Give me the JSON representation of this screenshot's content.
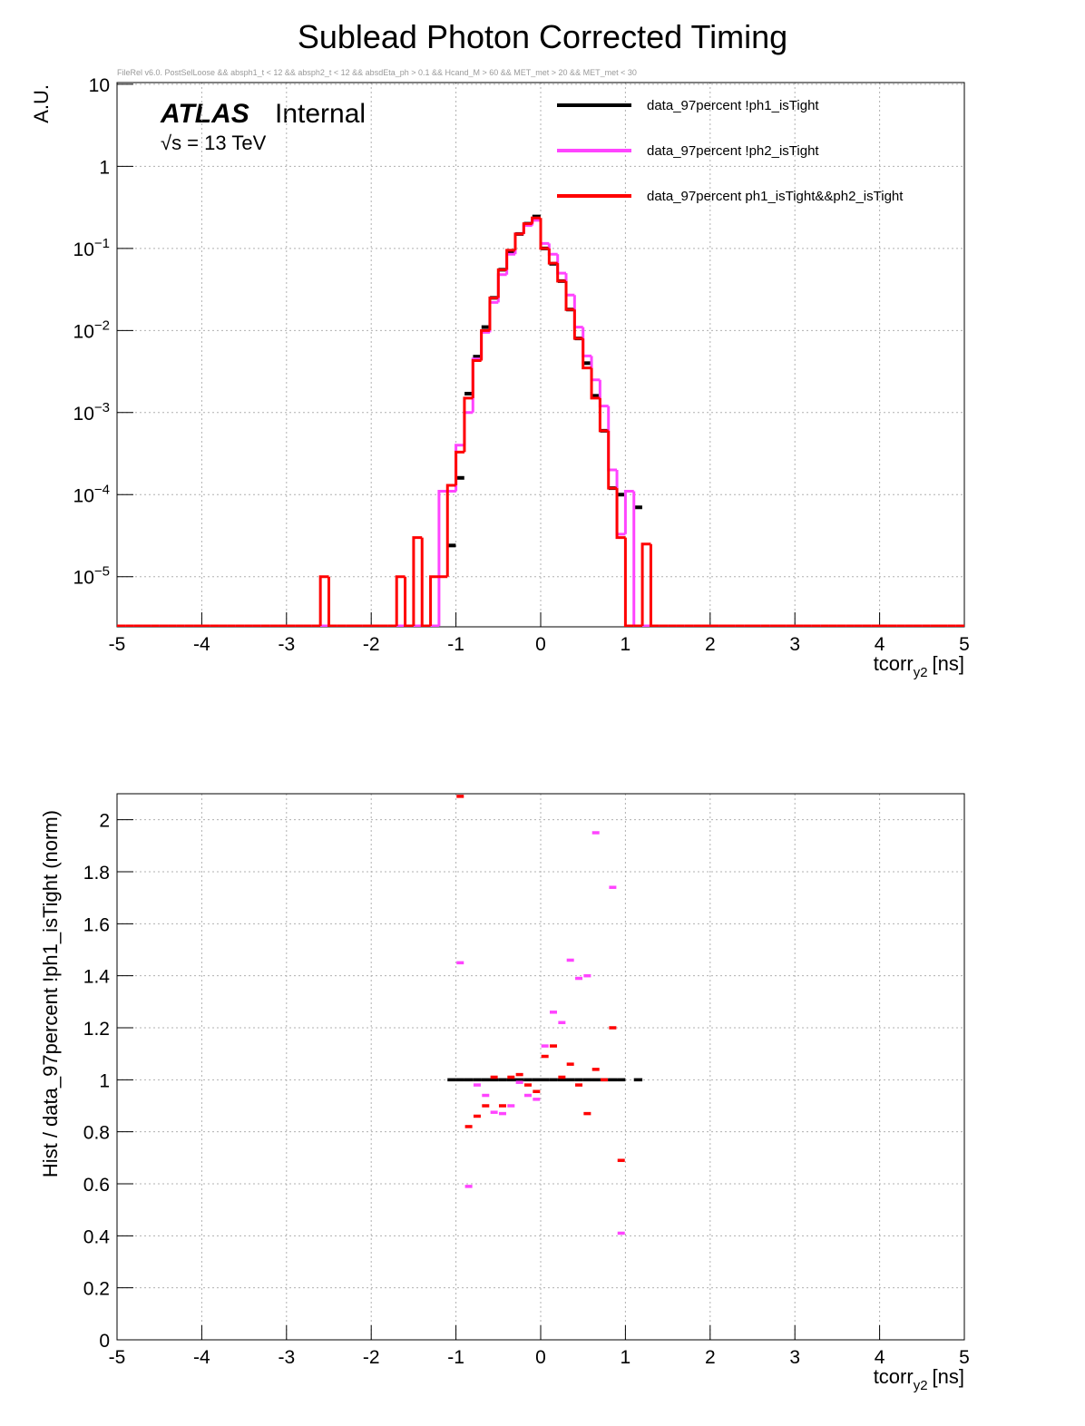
{
  "chart_data": [
    {
      "type": "histogram",
      "title": "Sublead Photon Corrected Timing",
      "subtitle": "FileRel v6.0. PostSelLoose &&  absph1_t < 12 && absph2_t < 12 && absdEta_ph > 0.1 && Hcand_M > 60 && MET_met > 20 && MET_met < 30",
      "annotations": [
        "ATLAS",
        "Internal",
        "√s = 13 TeV"
      ],
      "y_label": "A.U.",
      "x_label": {
        "main": "tcorr",
        "sub": "y2",
        "unit": "[ns]"
      },
      "log_y": true,
      "grid": true,
      "legend": "upper right",
      "xlim": [
        -5,
        5
      ],
      "xticks": [
        -5,
        -4,
        -3,
        -2,
        -1,
        0,
        1,
        2,
        3,
        4,
        5
      ],
      "ylim": [
        2.45e-06,
        10.5
      ],
      "yticks": [
        {
          "value": 1e-05,
          "label": "10",
          "exponent": "−5"
        },
        {
          "value": 0.0001,
          "label": "10",
          "exponent": "−4"
        },
        {
          "value": 0.001,
          "label": "10",
          "exponent": "−3"
        },
        {
          "value": 0.01,
          "label": "10",
          "exponent": "−2"
        },
        {
          "value": 0.1,
          "label": "10",
          "exponent": "−1"
        },
        1,
        10
      ],
      "bins": [
        -5,
        -4.9,
        -4.8,
        -4.7,
        -4.6,
        -4.5,
        -4.4,
        -4.3,
        -4.2,
        -4.1,
        -4,
        -3.9,
        -3.8,
        -3.7,
        -3.6,
        -3.5,
        -3.4,
        -3.3,
        -3.2,
        -3.1,
        -3,
        -2.9,
        -2.8,
        -2.7,
        -2.6,
        -2.5,
        -2.4,
        -2.3,
        -2.2,
        -2.1,
        -2,
        -1.9,
        -1.8,
        -1.7,
        -1.6,
        -1.5,
        -1.4,
        -1.3,
        -1.2,
        -1.1,
        -1,
        -0.9,
        -0.8,
        -0.7,
        -0.6,
        -0.5,
        -0.4,
        -0.3,
        -0.2,
        -0.1,
        0,
        0.1,
        0.2,
        0.3,
        0.4,
        0.5,
        0.6,
        0.7,
        0.8,
        0.9,
        1,
        1.1,
        1.2,
        1.3,
        1.4,
        1.5,
        1.6,
        1.7,
        1.8,
        1.9,
        2,
        2.1,
        2.2,
        2.3,
        2.4,
        2.5,
        2.6,
        2.7,
        2.8,
        2.9,
        3,
        3.1,
        3.2,
        3.3,
        3.4,
        3.5,
        3.6,
        3.7,
        3.8,
        3.9,
        4,
        4.1,
        4.2,
        4.3,
        4.4,
        4.5,
        4.6,
        4.7,
        4.8,
        4.9,
        5
      ],
      "series": [
        {
          "name": "data_97percent  !ph1_isTight",
          "color": "#000000",
          "style": "points",
          "values": [
            0,
            0,
            0,
            0,
            0,
            0,
            0,
            0,
            0,
            0,
            0,
            0,
            0,
            0,
            0,
            0,
            0,
            0,
            0,
            0,
            0,
            0,
            0,
            0,
            0,
            0,
            0,
            0,
            0,
            0,
            0,
            0,
            0,
            0,
            0,
            0,
            0,
            0,
            0,
            2.4e-05,
            0.00016,
            0.0017,
            0.0048,
            0.011,
            0.025,
            0.055,
            0.09,
            0.15,
            0.2,
            0.245,
            0.1,
            0.065,
            0.04,
            0.018,
            0.008,
            0.004,
            0.0016,
            0.0006,
            0.00012,
            0.0001,
            0,
            7e-05,
            0,
            0,
            0,
            0,
            0,
            0,
            0,
            0,
            0,
            0,
            0,
            0,
            0,
            0,
            0,
            0,
            0,
            0,
            0,
            0,
            0,
            0,
            0,
            0,
            0,
            0,
            0,
            0,
            0,
            0,
            0,
            0,
            0,
            0,
            0,
            0,
            0,
            0
          ]
        },
        {
          "name": "data_97percent  !ph2_isTight",
          "color": "#ff44ff",
          "style": "step",
          "values": [
            0,
            0,
            0,
            0,
            0,
            0,
            0,
            0,
            0,
            0,
            0,
            0,
            0,
            0,
            0,
            0,
            0,
            0,
            0,
            0,
            0,
            0,
            0,
            0,
            0,
            0,
            0,
            0,
            0,
            0,
            0,
            0,
            0,
            0,
            0,
            0,
            0,
            0,
            0.00011,
            0.00011,
            0.0004,
            0.001,
            0.0045,
            0.0095,
            0.022,
            0.048,
            0.085,
            0.15,
            0.19,
            0.22,
            0.115,
            0.085,
            0.05,
            0.027,
            0.011,
            0.0049,
            0.0025,
            0.0012,
            0.0002,
            3.3e-05,
            0.00011,
            0,
            0,
            0,
            0,
            0,
            0,
            0,
            0,
            0,
            0,
            0,
            0,
            0,
            0,
            0,
            0,
            0,
            0,
            0,
            0,
            0,
            0,
            0,
            0,
            0,
            0,
            0,
            0,
            0,
            0,
            0,
            0,
            0,
            0,
            0,
            0,
            0,
            0,
            0
          ]
        },
        {
          "name": "data_97percent  ph1_isTight&&ph2_isTight",
          "color": "#ff0000",
          "style": "step",
          "values": [
            0,
            0,
            0,
            0,
            0,
            0,
            0,
            0,
            0,
            0,
            0,
            0,
            0,
            0,
            0,
            0,
            0,
            0,
            0,
            0,
            0,
            0,
            0,
            0,
            1e-05,
            0,
            0,
            0,
            0,
            0,
            0,
            0,
            0,
            1e-05,
            0,
            3e-05,
            0,
            1e-05,
            1e-05,
            0.00013,
            0.00033,
            0.0015,
            0.0043,
            0.01,
            0.025,
            0.055,
            0.095,
            0.15,
            0.2,
            0.235,
            0.1,
            0.066,
            0.04,
            0.018,
            0.008,
            0.0035,
            0.0015,
            0.0006,
            0.00012,
            3e-05,
            0,
            0,
            2.5e-05,
            0,
            0,
            0,
            0,
            0,
            0,
            0,
            0,
            0,
            0,
            0,
            0,
            0,
            0,
            0,
            0,
            0,
            0,
            0,
            0,
            0,
            0,
            0,
            0,
            0,
            0,
            0,
            0,
            0,
            0,
            0,
            0,
            0,
            0,
            0,
            0,
            0
          ]
        }
      ]
    },
    {
      "type": "ratio",
      "y_label": "Hist / data_97percent  !ph1_isTight (norm)",
      "x_label": {
        "main": "tcorr",
        "sub": "y2",
        "unit": "[ns]"
      },
      "log_y": false,
      "grid": true,
      "xlim": [
        -5,
        5
      ],
      "xticks": [
        -5,
        -4,
        -3,
        -2,
        -1,
        0,
        1,
        2,
        3,
        4,
        5
      ],
      "ylim": [
        0,
        2.1
      ],
      "yticks": [
        0,
        0.2,
        0.4,
        0.6,
        0.8,
        1,
        1.2,
        1.4,
        1.6,
        1.8,
        2
      ],
      "x": [
        -1.05,
        -0.95,
        -0.85,
        -0.75,
        -0.65,
        -0.55,
        -0.45,
        -0.35,
        -0.25,
        -0.15,
        -0.05,
        0.05,
        0.15,
        0.25,
        0.35,
        0.45,
        0.55,
        0.65,
        0.75,
        0.85,
        0.95,
        1.05,
        1.15
      ],
      "series": [
        {
          "name": "data_97percent  !ph1_isTight",
          "color": "#000000",
          "style": "full",
          "values": [
            1,
            1,
            1,
            1,
            1,
            1,
            1,
            1,
            1,
            1,
            1,
            1,
            1,
            1,
            1,
            1,
            1,
            1,
            1,
            1,
            1,
            null,
            1
          ]
        },
        {
          "name": "data_97percent  !ph2_isTight",
          "color": "#ff44ff",
          "style": "dash",
          "values": [
            null,
            1.45,
            0.59,
            0.98,
            0.94,
            0.875,
            0.87,
            0.9,
            0.99,
            0.94,
            0.925,
            1.13,
            1.26,
            1.22,
            1.46,
            1.39,
            1.4,
            1.95,
            null,
            1.74,
            0.41,
            null,
            null
          ]
        },
        {
          "name": "data_97percent  ph1_isTight&&ph2_isTight",
          "color": "#ff0000",
          "style": "dash",
          "values": [
            null,
            2.09,
            0.82,
            0.86,
            0.9,
            1.01,
            0.9,
            1.01,
            1.02,
            0.98,
            0.955,
            1.09,
            1.13,
            1.01,
            1.06,
            0.98,
            0.87,
            1.04,
            1,
            1.2,
            0.69,
            null,
            null
          ]
        }
      ]
    }
  ]
}
